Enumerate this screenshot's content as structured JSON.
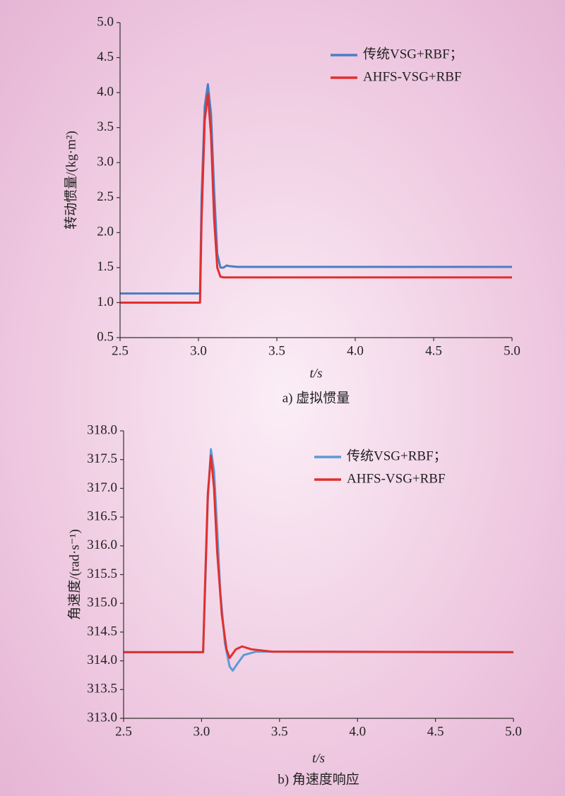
{
  "chart_data": [
    {
      "type": "line",
      "xlabel": "t/s",
      "ylabel": "转动惯量/(kg·m²)",
      "caption": "a) 虚拟惯量",
      "xlim": [
        2.5,
        5.0
      ],
      "ylim": [
        0.5,
        5.0
      ],
      "xticks": [
        2.5,
        {
          "value": 3,
          "label": "3.0"
        },
        3.5,
        {
          "value": 4,
          "label": "4.0"
        },
        4.5,
        {
          "value": 5,
          "label": "5.0"
        }
      ],
      "yticks": [
        0.5,
        {
          "value": 1,
          "label": "1.0"
        },
        1.5,
        {
          "value": 2,
          "label": "2.0"
        },
        2.5,
        {
          "value": 3,
          "label": "3.0"
        },
        3.5,
        {
          "value": 4,
          "label": "4.0"
        },
        4.5,
        {
          "value": 5,
          "label": "5.0"
        }
      ],
      "grid": false,
      "legend": "upper-right",
      "series": [
        {
          "name": "传统VSG+RBF；",
          "color": "#4a7ec4",
          "x": [
            2.5,
            3.0,
            3.01,
            3.02,
            3.04,
            3.06,
            3.08,
            3.1,
            3.12,
            3.14,
            3.16,
            3.18,
            3.2,
            3.25,
            5.0
          ],
          "values": [
            1.13,
            1.13,
            1.13,
            2.5,
            3.8,
            4.12,
            3.7,
            2.6,
            1.7,
            1.5,
            1.5,
            1.53,
            1.52,
            1.51,
            1.51
          ]
        },
        {
          "name": "AHFS-VSG+RBF",
          "color": "#e0302e",
          "x": [
            2.5,
            3.0,
            3.01,
            3.02,
            3.04,
            3.06,
            3.08,
            3.1,
            3.12,
            3.14,
            3.16,
            5.0
          ],
          "values": [
            1.0,
            1.0,
            1.0,
            2.2,
            3.6,
            3.98,
            3.4,
            2.2,
            1.5,
            1.37,
            1.36,
            1.36
          ]
        }
      ]
    },
    {
      "type": "line",
      "xlabel": "t/s",
      "ylabel": "角速度/(rad·s⁻¹)",
      "caption": "b) 角速度响应",
      "xlim": [
        2.5,
        5.0
      ],
      "ylim": [
        313,
        318
      ],
      "xticks": [
        2.5,
        {
          "value": 3,
          "label": "3.0"
        },
        3.5,
        {
          "value": 4,
          "label": "4.0"
        },
        4.5,
        {
          "value": 5,
          "label": "5.0"
        }
      ],
      "yticks": [
        {
          "value": 313,
          "label": "313.0"
        },
        313.5,
        {
          "value": 314,
          "label": "314.0"
        },
        314.5,
        {
          "value": 315,
          "label": "315.0"
        },
        315.5,
        {
          "value": 316,
          "label": "316.0"
        },
        316.5,
        {
          "value": 317,
          "label": "317.0"
        },
        317.5,
        {
          "value": 318,
          "label": "318.0"
        }
      ],
      "grid": false,
      "legend": "upper-right",
      "series": [
        {
          "name": "传统VSG+RBF；",
          "color": "#5b9ad8",
          "x": [
            2.5,
            3.0,
            3.01,
            3.02,
            3.04,
            3.06,
            3.08,
            3.1,
            3.12,
            3.15,
            3.18,
            3.2,
            3.23,
            3.27,
            3.35,
            5.0
          ],
          "values": [
            314.15,
            314.15,
            314.15,
            315.0,
            316.8,
            317.68,
            317.3,
            316.3,
            315.2,
            314.3,
            313.9,
            313.83,
            313.95,
            314.1,
            314.16,
            314.15
          ]
        },
        {
          "name": "AHFS-VSG+RBF",
          "color": "#e0302e",
          "x": [
            2.5,
            3.0,
            3.01,
            3.02,
            3.04,
            3.06,
            3.08,
            3.1,
            3.13,
            3.16,
            3.18,
            3.22,
            3.26,
            3.32,
            3.45,
            5.0
          ],
          "values": [
            314.15,
            314.15,
            314.15,
            315.1,
            316.9,
            317.57,
            317.0,
            315.9,
            314.8,
            314.2,
            314.05,
            314.2,
            314.25,
            314.2,
            314.16,
            314.15
          ]
        }
      ]
    }
  ]
}
